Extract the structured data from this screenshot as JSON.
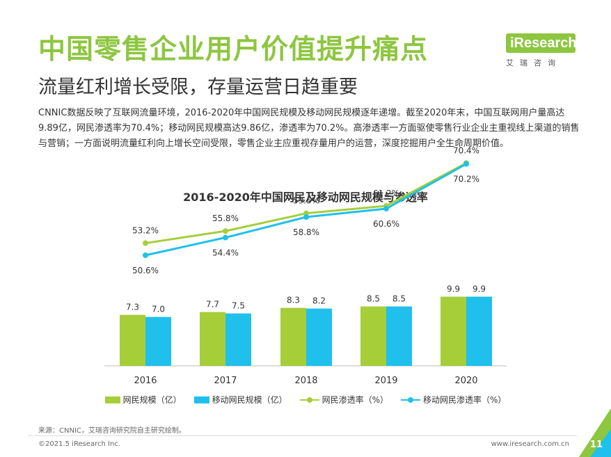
{
  "header": {
    "title": "中国零售企业用户价值提升痛点",
    "subtitle": "流量红利增长受限，存量运营日趋重要"
  },
  "brand": {
    "logo_text": "iResearch",
    "sub_text": "艾瑞咨询",
    "color": "#8dc63f"
  },
  "intro": "CNNIC数据反映了互联网流量环境，2016-2020年中国网民规模及移动网民规模逐年递增。截至2020年末，中国互联网用户量高达9.89亿，网民渗透率为70.4%；移动网民规模高达9.86亿，渗透率为70.2%。高渗透率一方面驱使零售行业企业主重视线上渠道的销售与营销；一方面说明流量红利向上增长空间受限，零售企业主应重视存量用户的运营，深度挖掘用户全生命周期价值。",
  "chart_data": {
    "type": "bar",
    "title": "2016-2020年中国网民及移动网民规模与渗透率",
    "categories": [
      "2016",
      "2017",
      "2018",
      "2019",
      "2020"
    ],
    "series": [
      {
        "name": "网民规模（亿）",
        "kind": "bar",
        "color": "#a6ce39",
        "values": [
          7.3,
          7.7,
          8.3,
          8.5,
          9.9
        ],
        "labels": [
          "7.3",
          "7.7",
          "8.3",
          "8.5",
          "9.9"
        ]
      },
      {
        "name": "移动网民规模（亿）",
        "kind": "bar",
        "color": "#1fc0ec",
        "values": [
          7.0,
          7.5,
          8.2,
          8.5,
          9.9
        ],
        "labels": [
          "7.0",
          "7.5",
          "8.2",
          "8.5",
          "9.9"
        ]
      },
      {
        "name": "网民渗透率（%）",
        "kind": "line",
        "color": "#a6ce39",
        "values": [
          53.2,
          55.8,
          59.6,
          61.2,
          70.4
        ],
        "labels": [
          "53.2%",
          "55.8%",
          "59.6%",
          "61.2%",
          "70.4%"
        ]
      },
      {
        "name": "移动网民渗透率（%）",
        "kind": "line",
        "color": "#1fc0ec",
        "values": [
          50.6,
          54.4,
          58.8,
          60.6,
          70.2
        ],
        "labels": [
          "50.6%",
          "54.4%",
          "58.8%",
          "60.6%",
          "70.2%"
        ]
      }
    ],
    "legend_position": "bottom",
    "grid": false
  },
  "source": "来源：CNNIC，艾瑞咨询研究院自主研究绘制。",
  "footer": {
    "copyright": "©2021.5 iResearch Inc.",
    "website": "www.iresearch.com.cn",
    "page_number": "11"
  }
}
